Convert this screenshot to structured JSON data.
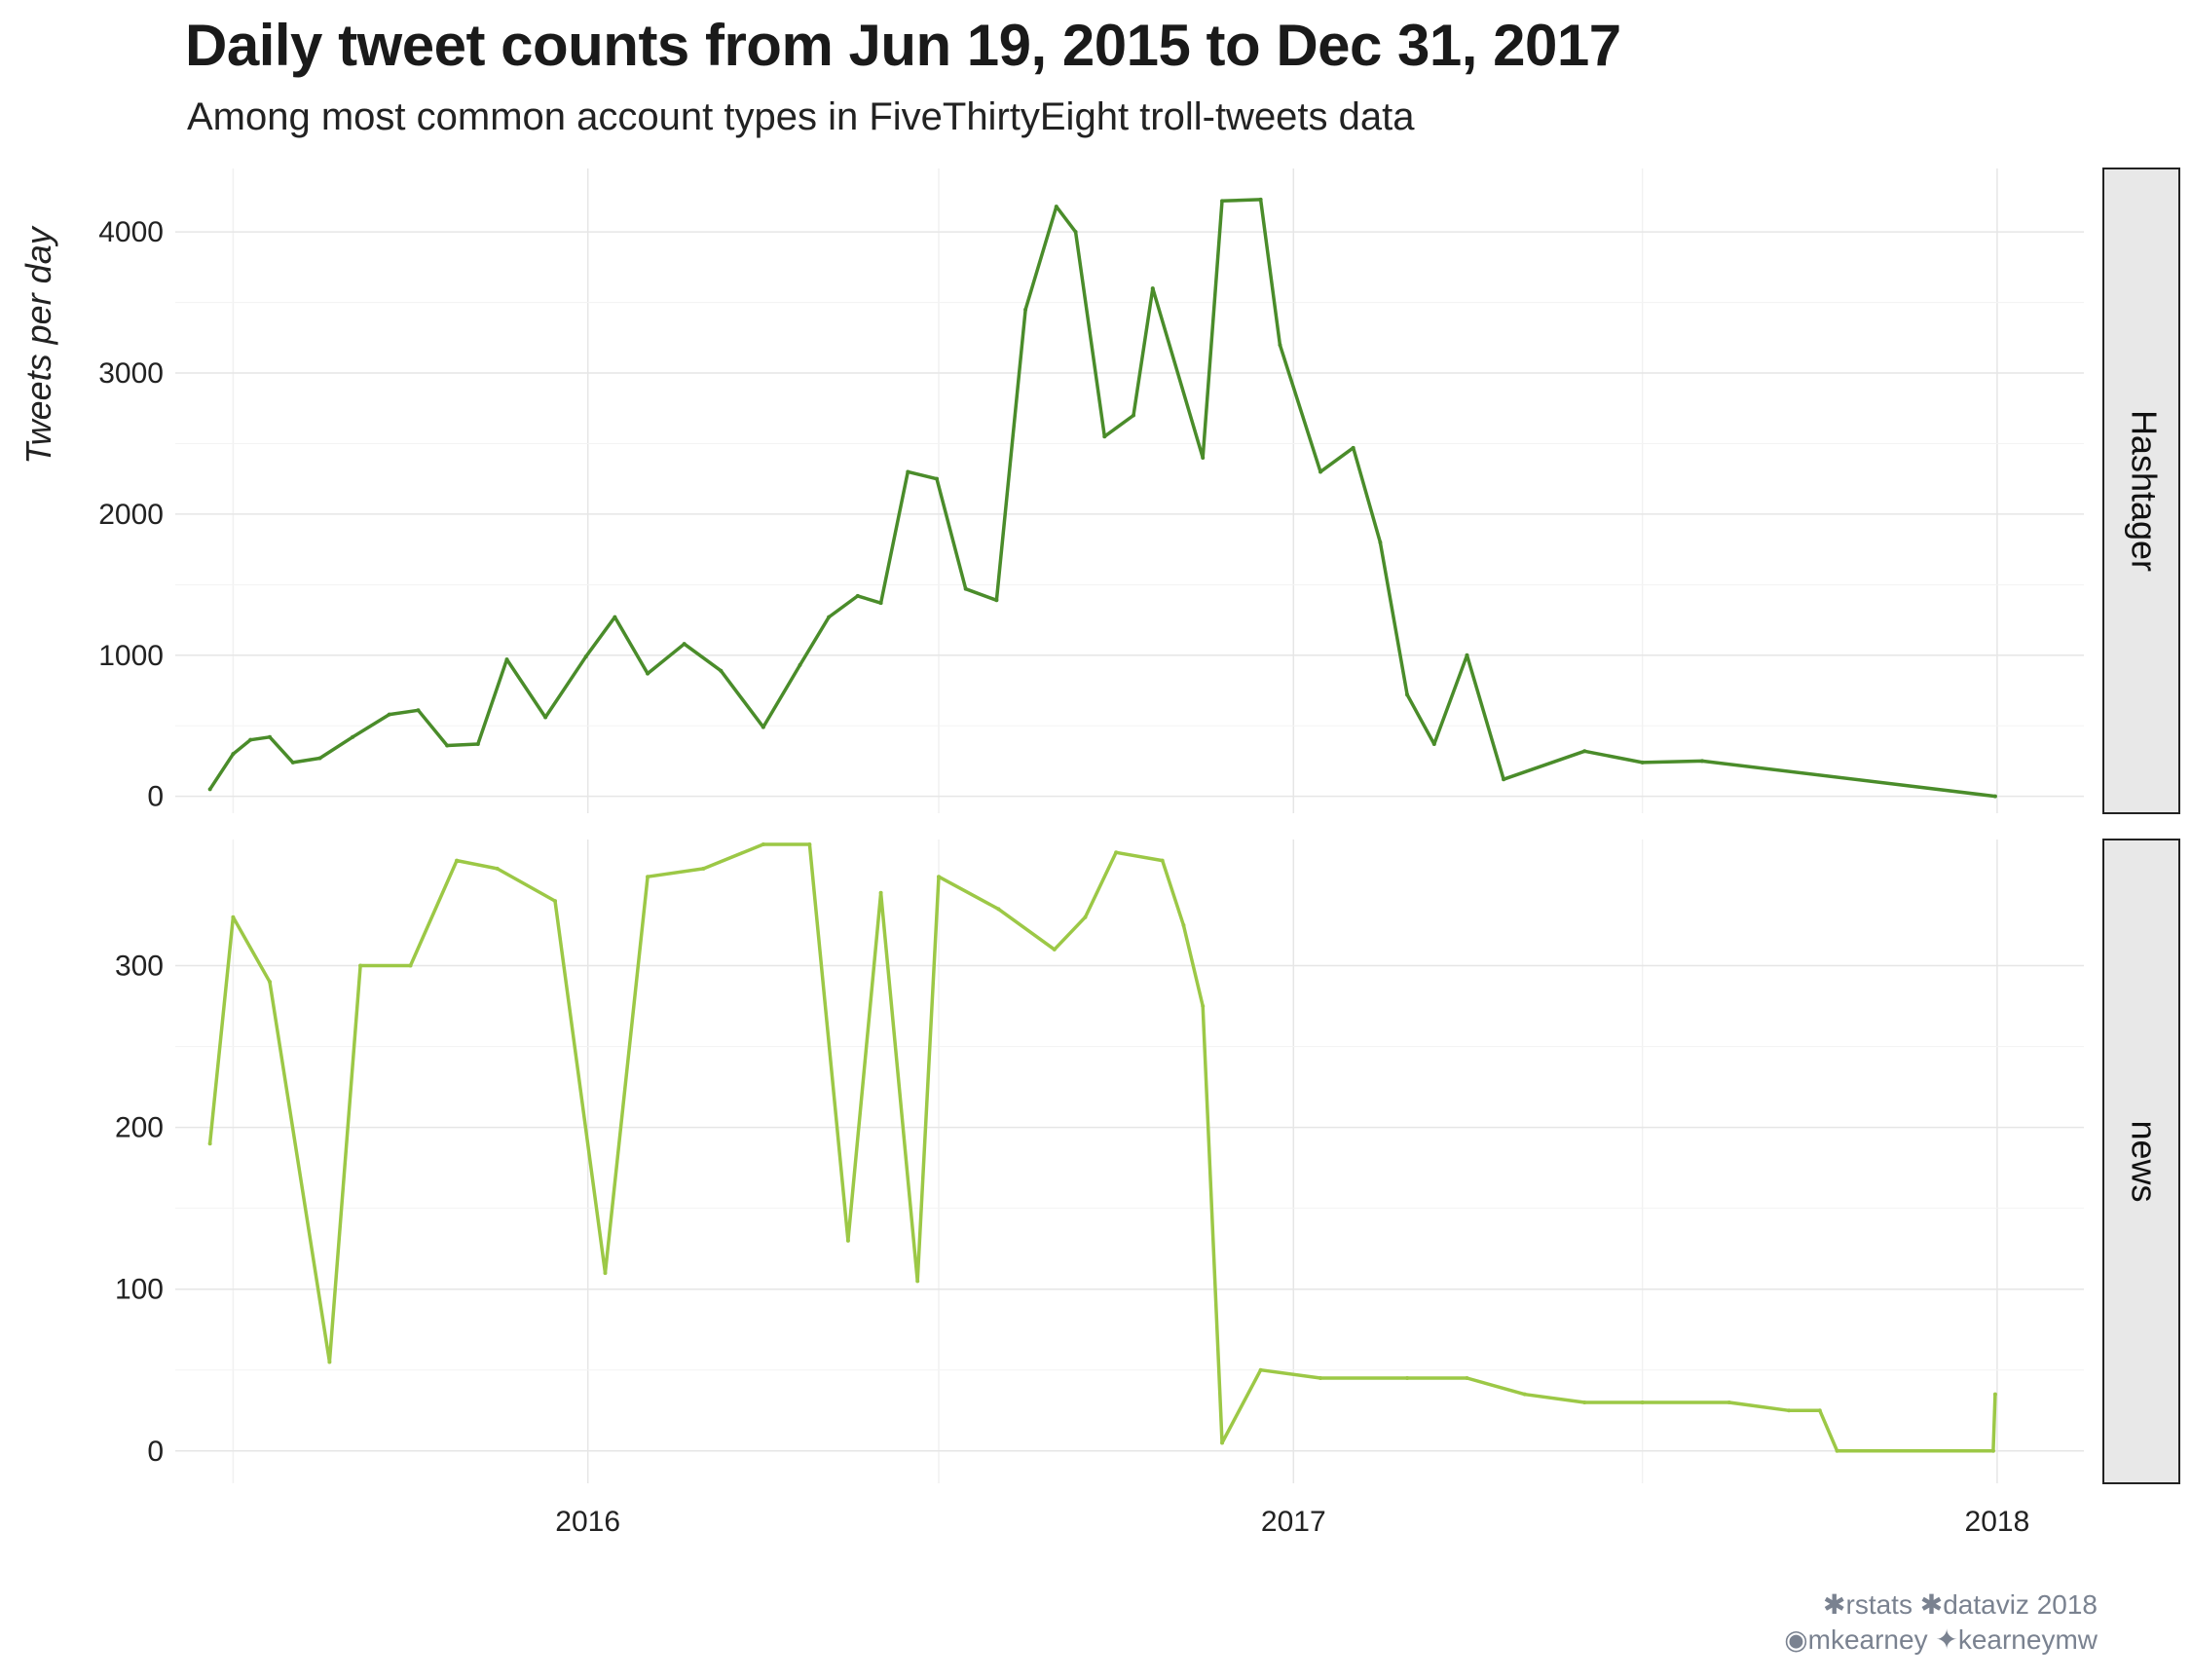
{
  "title": "Daily tweet counts from Jun 19, 2015 to Dec 31, 2017",
  "subtitle": "Among most common account types in FiveThirtyEight troll-tweets data",
  "caption": {
    "line1": "✱rstats ✱dataviz 2018",
    "line2_github": "mkearney",
    "line2_twitter": "kearneymw",
    "icons": [
      "gear-icon",
      "gear-icon",
      "github-icon",
      "twitter-icon"
    ]
  },
  "chart_data": {
    "type": "line",
    "ylabel": "Tweets per day",
    "x_ticks": [
      "2016",
      "2017",
      "2018"
    ],
    "facets": [
      {
        "label": "Hashtager",
        "color": "#4a8c2a",
        "y_ticks": [
          0,
          1000,
          2000,
          3000,
          4000
        ],
        "ylim": [
          -120,
          4450
        ],
        "points": [
          [
            "2015-06-19",
            50
          ],
          [
            "2015-07-01",
            300
          ],
          [
            "2015-07-10",
            400
          ],
          [
            "2015-07-20",
            420
          ],
          [
            "2015-08-01",
            240
          ],
          [
            "2015-08-15",
            270
          ],
          [
            "2015-09-01",
            420
          ],
          [
            "2015-09-20",
            580
          ],
          [
            "2015-10-05",
            610
          ],
          [
            "2015-10-20",
            360
          ],
          [
            "2015-11-05",
            370
          ],
          [
            "2015-11-20",
            970
          ],
          [
            "2015-12-10",
            560
          ],
          [
            "2015-12-31",
            990
          ],
          [
            "2016-01-15",
            1270
          ],
          [
            "2016-02-01",
            870
          ],
          [
            "2016-02-20",
            1080
          ],
          [
            "2016-03-10",
            890
          ],
          [
            "2016-04-01",
            490
          ],
          [
            "2016-04-20",
            930
          ],
          [
            "2016-05-05",
            1270
          ],
          [
            "2016-05-20",
            1420
          ],
          [
            "2016-06-01",
            1370
          ],
          [
            "2016-06-15",
            2300
          ],
          [
            "2016-06-30",
            2250
          ],
          [
            "2016-07-15",
            1470
          ],
          [
            "2016-07-31",
            1390
          ],
          [
            "2016-08-15",
            3450
          ],
          [
            "2016-08-31",
            4180
          ],
          [
            "2016-09-10",
            4000
          ],
          [
            "2016-09-25",
            2550
          ],
          [
            "2016-10-10",
            2700
          ],
          [
            "2016-10-20",
            3600
          ],
          [
            "2016-11-15",
            2400
          ],
          [
            "2016-11-25",
            4220
          ],
          [
            "2016-12-15",
            4230
          ],
          [
            "2016-12-25",
            3200
          ],
          [
            "2017-01-15",
            2300
          ],
          [
            "2017-02-01",
            2470
          ],
          [
            "2017-02-15",
            1800
          ],
          [
            "2017-03-01",
            720
          ],
          [
            "2017-03-15",
            370
          ],
          [
            "2017-04-01",
            1000
          ],
          [
            "2017-04-20",
            120
          ],
          [
            "2017-06-01",
            320
          ],
          [
            "2017-07-01",
            240
          ],
          [
            "2017-08-01",
            250
          ],
          [
            "2017-12-31",
            0
          ]
        ]
      },
      {
        "label": "news",
        "color": "#9cc846",
        "y_ticks": [
          0,
          100,
          200,
          300
        ],
        "ylim": [
          -20,
          378
        ],
        "points": [
          [
            "2015-06-19",
            190
          ],
          [
            "2015-07-01",
            330
          ],
          [
            "2015-07-20",
            290
          ],
          [
            "2015-08-20",
            55
          ],
          [
            "2015-09-05",
            300
          ],
          [
            "2015-10-01",
            300
          ],
          [
            "2015-10-25",
            365
          ],
          [
            "2015-11-15",
            360
          ],
          [
            "2015-12-15",
            340
          ],
          [
            "2016-01-10",
            110
          ],
          [
            "2016-02-01",
            355
          ],
          [
            "2016-03-01",
            360
          ],
          [
            "2016-04-01",
            375
          ],
          [
            "2016-04-25",
            375
          ],
          [
            "2016-05-15",
            130
          ],
          [
            "2016-06-01",
            345
          ],
          [
            "2016-06-20",
            105
          ],
          [
            "2016-07-01",
            355
          ],
          [
            "2016-08-01",
            335
          ],
          [
            "2016-08-30",
            310
          ],
          [
            "2016-09-15",
            330
          ],
          [
            "2016-10-01",
            370
          ],
          [
            "2016-10-25",
            365
          ],
          [
            "2016-11-05",
            325
          ],
          [
            "2016-11-15",
            275
          ],
          [
            "2016-11-25",
            5
          ],
          [
            "2016-12-15",
            50
          ],
          [
            "2017-01-15",
            45
          ],
          [
            "2017-03-01",
            45
          ],
          [
            "2017-04-01",
            45
          ],
          [
            "2017-05-01",
            35
          ],
          [
            "2017-06-01",
            30
          ],
          [
            "2017-07-01",
            30
          ],
          [
            "2017-08-15",
            30
          ],
          [
            "2017-09-15",
            25
          ],
          [
            "2017-10-01",
            25
          ],
          [
            "2017-10-10",
            0
          ],
          [
            "2017-12-30",
            0
          ],
          [
            "2017-12-31",
            35
          ]
        ]
      }
    ]
  }
}
